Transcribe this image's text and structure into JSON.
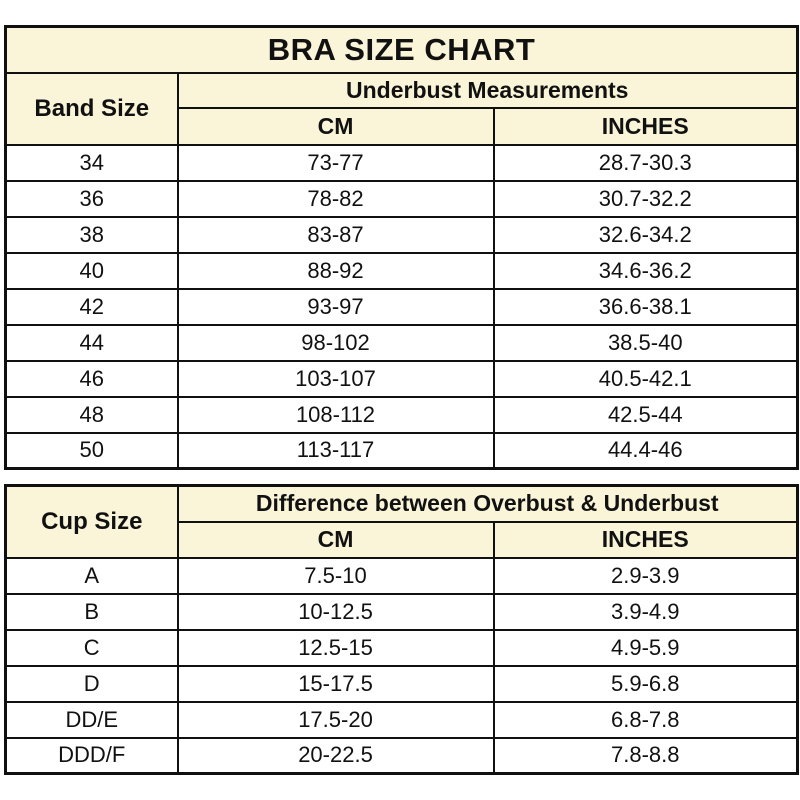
{
  "title": "BRA SIZE CHART",
  "colors": {
    "header_bg": "#FAF5D8",
    "border": "#101010",
    "text": "#111111",
    "page_bg": "#FFFFFF"
  },
  "band_table": {
    "row_header": "Band Size",
    "group_header": "Underbust Measurements",
    "col_cm": "CM",
    "col_inches": "INCHES",
    "rows": [
      {
        "size": "34",
        "cm": "73-77",
        "inches": "28.7-30.3"
      },
      {
        "size": "36",
        "cm": "78-82",
        "inches": "30.7-32.2"
      },
      {
        "size": "38",
        "cm": "83-87",
        "inches": "32.6-34.2"
      },
      {
        "size": "40",
        "cm": "88-92",
        "inches": "34.6-36.2"
      },
      {
        "size": "42",
        "cm": "93-97",
        "inches": "36.6-38.1"
      },
      {
        "size": "44",
        "cm": "98-102",
        "inches": "38.5-40"
      },
      {
        "size": "46",
        "cm": "103-107",
        "inches": "40.5-42.1"
      },
      {
        "size": "48",
        "cm": "108-112",
        "inches": "42.5-44"
      },
      {
        "size": "50",
        "cm": "113-117",
        "inches": "44.4-46"
      }
    ]
  },
  "cup_table": {
    "row_header": "Cup Size",
    "group_header": "Difference between Overbust & Underbust",
    "col_cm": "CM",
    "col_inches": "INCHES",
    "rows": [
      {
        "size": "A",
        "cm": "7.5-10",
        "inches": "2.9-3.9"
      },
      {
        "size": "B",
        "cm": "10-12.5",
        "inches": "3.9-4.9"
      },
      {
        "size": "C",
        "cm": "12.5-15",
        "inches": "4.9-5.9"
      },
      {
        "size": "D",
        "cm": "15-17.5",
        "inches": "5.9-6.8"
      },
      {
        "size": "DD/E",
        "cm": "17.5-20",
        "inches": "6.8-7.8"
      },
      {
        "size": "DDD/F",
        "cm": "20-22.5",
        "inches": "7.8-8.8"
      }
    ]
  }
}
